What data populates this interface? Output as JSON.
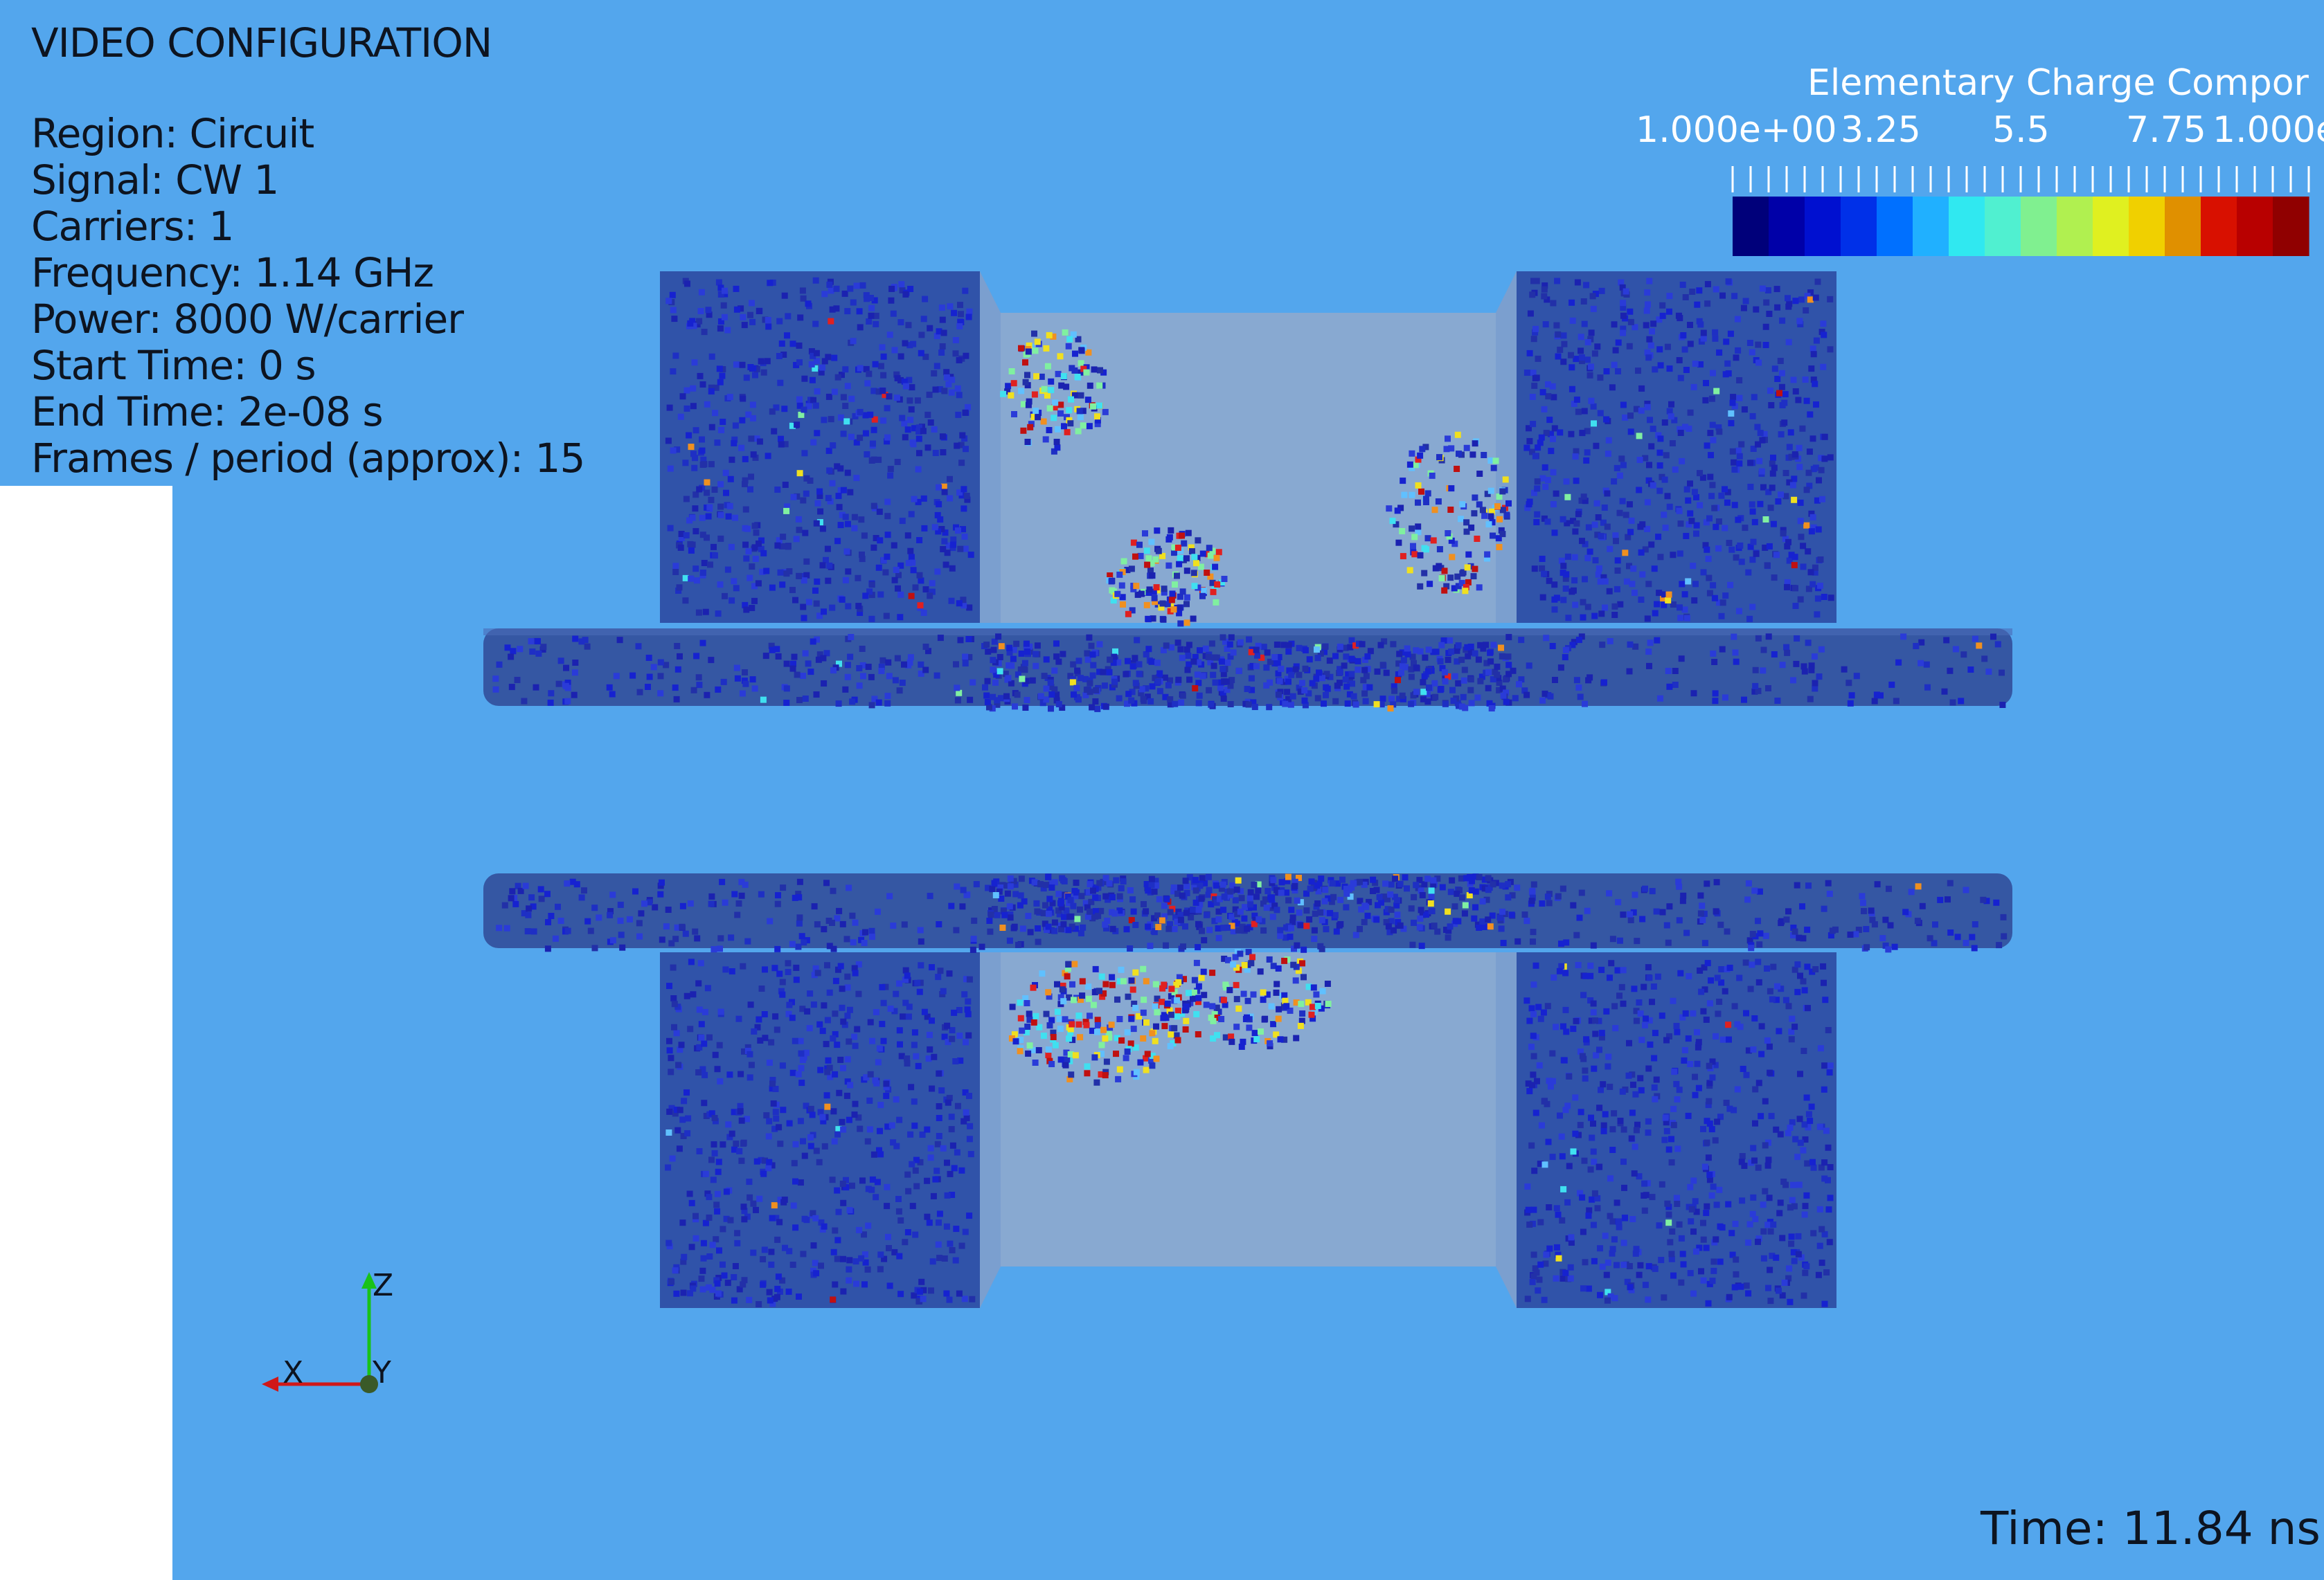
{
  "overlay": {
    "title": "VIDEO CONFIGURATION",
    "info_lines": [
      "Region: Circuit",
      "Signal: CW 1",
      "Carriers: 1",
      "Frequency: 1.14 GHz",
      "Power: 8000 W/carrier",
      "Start Time: 0 s",
      "End Time: 2e-08 s",
      "Frames / period (approx): 15"
    ]
  },
  "colorbar": {
    "title": "Elementary Charge Compor",
    "tick_labels": [
      "1.000e+00",
      "3.25",
      "5.5",
      "7.75",
      "1.000e"
    ],
    "range": [
      1,
      10
    ],
    "colors": [
      "#00007a",
      "#0000a8",
      "#0010d0",
      "#0030e8",
      "#0070ff",
      "#20b0ff",
      "#30e8f0",
      "#50f0d0",
      "#80f090",
      "#b0f050",
      "#e0f020",
      "#f0d000",
      "#e09000",
      "#d81000",
      "#b80000",
      "#900000"
    ]
  },
  "axes": {
    "z_label": "Z",
    "x_label": "X",
    "y_label": "Y"
  },
  "time_readout": "Time:  11.84 ns",
  "colors": {
    "background": "#53a6ed",
    "block": "#2e4ca3",
    "cavity": "#8facd0",
    "plate": "#33539f",
    "particle": "#1a2ab5"
  }
}
